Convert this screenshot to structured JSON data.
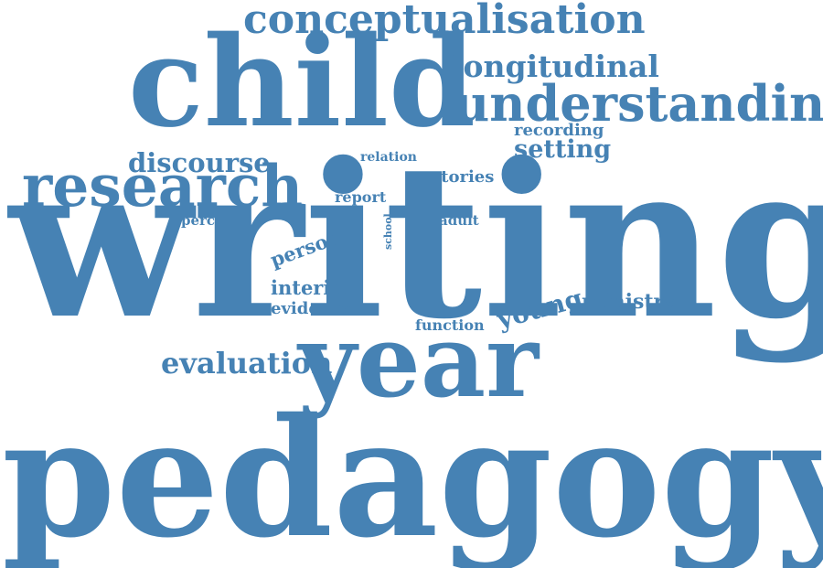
{
  "color": "#4682b4",
  "words": [
    "conceptualisation",
    "child",
    "longitudinal",
    "understanding",
    "recording",
    "setting",
    "discourse",
    "relation",
    "research",
    "stories",
    "report",
    "perceive",
    "school",
    "adult",
    "writing",
    "person",
    "interim",
    "evidence",
    "young",
    "ministry",
    "function",
    "evaluation",
    "year",
    "pedagogy"
  ]
}
